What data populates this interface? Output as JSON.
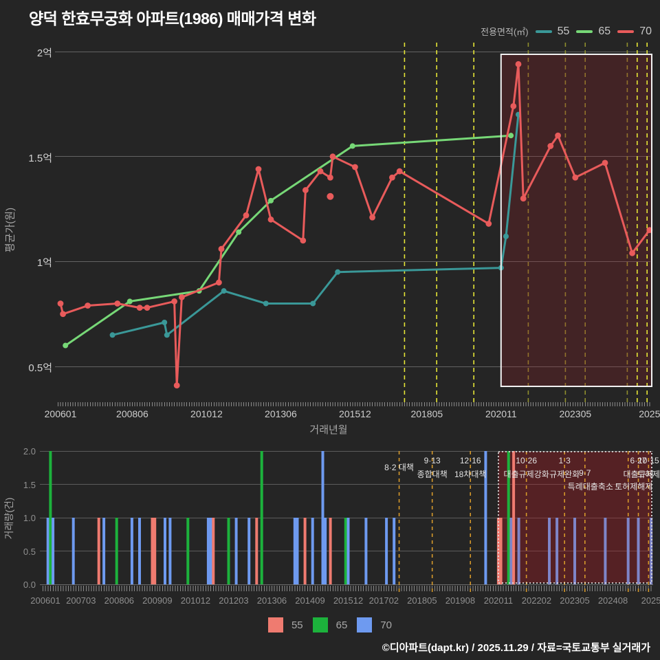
{
  "title": "양덕 한효무궁화 아파트(1986) 매매가격 변화",
  "top_legend": {
    "label": "전용면적(㎡)",
    "items": [
      {
        "name": "55",
        "color": "#3a9898"
      },
      {
        "name": "65",
        "color": "#77d877"
      },
      {
        "name": "70",
        "color": "#e85b5b"
      }
    ]
  },
  "bottom_legend": [
    {
      "name": "55",
      "color": "#ef7b70"
    },
    {
      "name": "65",
      "color": "#1cb23c"
    },
    {
      "name": "70",
      "color": "#6e9af0"
    }
  ],
  "footer": "©디아파트(dapt.kr) / 2025.11.29 / 자료=국토교통부 실거래가",
  "colors": {
    "background": "#252525",
    "gridline": "#636363",
    "policy_dash_bright": "#e6e636",
    "policy_dash_dim": "#8f8f2e",
    "policy_dash_orange": "#d6992b",
    "highlight_fill_price": "rgba(160,28,36,0.24)",
    "highlight_fill_volume": "rgba(165,30,38,0.38)",
    "highlight_border": "#f2f2f2",
    "bar70_muted_in_highlight": "#7e85c8"
  },
  "chart_data": [
    {
      "name": "price",
      "type": "line",
      "ylabel": "평균가(원)",
      "xlabel": "거래년월",
      "unit": "억원 (hundred million KRW)",
      "ylim": [
        0.3,
        2.05
      ],
      "grid": true,
      "legend_position": "top-right",
      "yticks": [
        [
          "2억",
          2
        ],
        [
          "1.5억",
          1.5
        ],
        [
          "1억",
          1
        ],
        [
          "0.5억",
          0.5
        ]
      ],
      "xticks": [
        [
          "200601",
          "2006-01"
        ],
        [
          "200806",
          "2008-06"
        ],
        [
          "201012",
          "2010-12"
        ],
        [
          "201306",
          "2013-06"
        ],
        [
          "201512",
          "2015-12"
        ],
        [
          "201805",
          "2018-05"
        ],
        [
          "202011",
          "2020-11"
        ],
        [
          "202305",
          "2023-05"
        ],
        [
          "2025",
          "2025-11"
        ]
      ],
      "series": [
        {
          "name": "55",
          "color": "#3a9898",
          "points": [
            [
              "2007-10",
              0.65
            ],
            [
              "2009-07",
              0.71
            ],
            [
              "2009-08",
              0.65
            ],
            [
              "2011-07",
              0.86
            ],
            [
              "2012-12",
              0.8
            ],
            [
              "2014-07",
              0.8
            ],
            [
              "2015-05",
              0.95
            ],
            [
              "2020-11",
              0.97
            ],
            [
              "2021-01",
              1.12
            ],
            [
              "2021-06",
              1.7
            ]
          ]
        },
        {
          "name": "65",
          "color": "#77d877",
          "points": [
            [
              "2006-03",
              0.6
            ],
            [
              "2008-05",
              0.81
            ],
            [
              "2010-09",
              0.86
            ],
            [
              "2012-01",
              1.14
            ],
            [
              "2013-02",
              1.29
            ],
            [
              "2015-11",
              1.55
            ],
            [
              "2021-03",
              1.6
            ]
          ]
        },
        {
          "name": "70",
          "color": "#e85b5b",
          "points": [
            [
              "2006-01",
              0.8
            ],
            [
              "2006-02",
              0.75
            ],
            [
              "2006-12",
              0.79
            ],
            [
              "2007-12",
              0.8
            ],
            [
              "2008-09",
              0.78
            ],
            [
              "2008-12",
              0.78
            ],
            [
              "2009-11",
              0.81
            ],
            [
              "2009-12",
              0.41
            ],
            [
              "2010-02",
              0.83
            ],
            [
              "2011-05",
              0.9
            ],
            [
              "2011-06",
              1.06
            ],
            [
              "2012-04",
              1.22
            ],
            [
              "2012-09",
              1.44
            ],
            [
              "2013-02",
              1.2
            ],
            [
              "2014-03",
              1.1
            ],
            [
              "2014-04",
              1.34
            ],
            [
              "2014-10",
              1.43
            ],
            [
              "2015-02",
              1.4
            ],
            [
              "2015-03",
              1.5
            ],
            [
              "2015-12",
              1.45
            ],
            [
              "2016-07",
              1.21
            ],
            [
              "2017-03",
              1.4
            ],
            [
              "2017-06",
              1.43
            ],
            [
              "2020-06",
              1.18
            ],
            [
              "2021-04",
              1.74
            ],
            [
              "2021-06",
              1.94
            ],
            [
              "2021-08",
              1.3
            ],
            [
              "2022-07",
              1.55
            ],
            [
              "2022-10",
              1.6
            ],
            [
              "2023-05",
              1.4
            ],
            [
              "2024-05",
              1.47
            ],
            [
              "2025-04",
              1.04
            ],
            [
              "2025-11",
              1.15
            ]
          ]
        }
      ],
      "outlier_point": {
        "series": "70",
        "date": "2015-02",
        "value": 1.31
      },
      "highlight_range": [
        "2020-11",
        "2025-12"
      ],
      "policy_dates": [
        {
          "date": "2017-08",
          "top_style": "bright"
        },
        {
          "date": "2018-09",
          "top_style": "bright"
        },
        {
          "date": "2019-12",
          "top_style": "bright"
        },
        {
          "date": "2021-10",
          "top_style": "dim"
        },
        {
          "date": "2023-01",
          "top_style": "dim"
        },
        {
          "date": "2023-09",
          "top_style": "dim"
        },
        {
          "date": "2025-02",
          "top_style": "dim"
        },
        {
          "date": "2025-06",
          "top_style": "bright"
        },
        {
          "date": "2025-10",
          "top_style": "bright"
        }
      ]
    },
    {
      "name": "volume",
      "type": "bar",
      "ylabel": "거래량(건)",
      "ylim": [
        0,
        2
      ],
      "grid": true,
      "yticks": [
        [
          "2.0",
          2
        ],
        [
          "1.5",
          1.5
        ],
        [
          "1.0",
          1
        ],
        [
          "0.5",
          0.5
        ],
        [
          "0.0",
          0
        ]
      ],
      "xticks": [
        [
          "200601",
          "2006-01"
        ],
        [
          "200703",
          "2007-03"
        ],
        [
          "200806",
          "2008-06"
        ],
        [
          "200909",
          "2009-09"
        ],
        [
          "201012",
          "2010-12"
        ],
        [
          "201203",
          "2012-03"
        ],
        [
          "201306",
          "2013-06"
        ],
        [
          "201409",
          "2014-09"
        ],
        [
          "201512",
          "2015-12"
        ],
        [
          "201702",
          "2017-02"
        ],
        [
          "201805",
          "2018-05"
        ],
        [
          "201908",
          "2019-08"
        ],
        [
          "202011",
          "2020-11"
        ],
        [
          "202202",
          "2022-02"
        ],
        [
          "202305",
          "2023-05"
        ],
        [
          "202408",
          "2024-08"
        ],
        [
          "2025",
          "2025-11"
        ]
      ],
      "series_colors": {
        "55": "#ef7b70",
        "65": "#1cb23c",
        "70": "#6e9af0"
      },
      "bars": [
        {
          "date": "2006-02",
          "series": "70",
          "count": 1
        },
        {
          "date": "2006-03",
          "series": "65",
          "count": 2
        },
        {
          "date": "2006-04",
          "series": "70",
          "count": 1
        },
        {
          "date": "2006-12",
          "series": "70",
          "count": 1
        },
        {
          "date": "2007-10",
          "series": "55",
          "count": 1
        },
        {
          "date": "2007-12",
          "series": "70",
          "count": 1
        },
        {
          "date": "2008-05",
          "series": "65",
          "count": 1
        },
        {
          "date": "2008-11",
          "series": "70",
          "count": 1
        },
        {
          "date": "2009-02",
          "series": "70",
          "count": 1
        },
        {
          "date": "2009-07",
          "series": "55",
          "count": 1
        },
        {
          "date": "2009-08",
          "series": "55",
          "count": 1
        },
        {
          "date": "2009-12",
          "series": "70",
          "count": 1
        },
        {
          "date": "2010-02",
          "series": "70",
          "count": 1
        },
        {
          "date": "2010-09",
          "series": "65",
          "count": 1
        },
        {
          "date": "2011-05",
          "series": "70",
          "count": 1
        },
        {
          "date": "2011-06",
          "series": "70",
          "count": 1
        },
        {
          "date": "2011-07",
          "series": "55",
          "count": 1
        },
        {
          "date": "2012-01",
          "series": "65",
          "count": 1
        },
        {
          "date": "2012-04",
          "series": "70",
          "count": 1
        },
        {
          "date": "2012-09",
          "series": "70",
          "count": 1
        },
        {
          "date": "2012-12",
          "series": "55",
          "count": 1
        },
        {
          "date": "2013-02",
          "series": "65",
          "count": 2
        },
        {
          "date": "2014-03",
          "series": "70",
          "count": 1
        },
        {
          "date": "2014-04",
          "series": "70",
          "count": 1
        },
        {
          "date": "2014-07",
          "series": "55",
          "count": 1
        },
        {
          "date": "2014-10",
          "series": "70",
          "count": 1
        },
        {
          "date": "2015-02",
          "series": "70",
          "count": 2
        },
        {
          "date": "2015-03",
          "series": "70",
          "count": 1
        },
        {
          "date": "2015-05",
          "series": "55",
          "count": 1
        },
        {
          "date": "2015-11",
          "series": "65",
          "count": 1
        },
        {
          "date": "2015-12",
          "series": "70",
          "count": 1
        },
        {
          "date": "2016-07",
          "series": "70",
          "count": 1
        },
        {
          "date": "2017-03",
          "series": "70",
          "count": 1
        },
        {
          "date": "2017-06",
          "series": "70",
          "count": 1
        },
        {
          "date": "2020-06",
          "series": "70",
          "count": 2
        },
        {
          "date": "2020-11",
          "series": "55",
          "count": 1
        },
        {
          "date": "2020-12",
          "series": "55",
          "count": 1
        },
        {
          "date": "2021-03",
          "series": "65",
          "count": 2
        },
        {
          "date": "2021-04",
          "series": "70",
          "count": 1
        },
        {
          "date": "2021-05",
          "series": "55",
          "count": 2
        },
        {
          "date": "2021-07",
          "series": "70",
          "count": 1
        },
        {
          "date": "2022-07",
          "series": "70",
          "count": 1
        },
        {
          "date": "2022-10",
          "series": "70",
          "count": 1
        },
        {
          "date": "2023-05",
          "series": "70",
          "count": 1
        },
        {
          "date": "2024-05",
          "series": "70",
          "count": 1
        },
        {
          "date": "2025-02",
          "series": "70",
          "count": 1
        },
        {
          "date": "2025-06",
          "series": "70",
          "count": 1
        },
        {
          "date": "2025-11",
          "series": "70",
          "count": 1
        }
      ],
      "highlight_range": [
        "2020-11",
        "2025-12"
      ],
      "policy_dates": [
        "2017-08",
        "2018-09",
        "2019-12",
        "2021-10",
        "2023-01",
        "2023-09",
        "2025-02",
        "2025-06",
        "2025-10"
      ],
      "annotations": [
        {
          "date": "2017-08",
          "row": 1,
          "dy": 8,
          "text": "8·2 대책"
        },
        {
          "date": "2018-09",
          "row": 1,
          "text": "9·13"
        },
        {
          "date": "2018-09",
          "row": 2,
          "text": "종합대책"
        },
        {
          "date": "2019-12",
          "row": 1,
          "text": "12·16"
        },
        {
          "date": "2019-12",
          "row": 2,
          "text": "18차대책"
        },
        {
          "date": "2021-10",
          "row": 1,
          "text": "10·26"
        },
        {
          "date": "2021-10",
          "row": 2,
          "text": "대출규제강화"
        },
        {
          "date": "2023-01",
          "row": 1,
          "text": "1·3"
        },
        {
          "date": "2023-01",
          "row": 2,
          "text": "규제완화"
        },
        {
          "date": "2023-09",
          "row": 2,
          "text": "9·7"
        },
        {
          "date": "2023-09",
          "row": 3,
          "dx": 8,
          "text": "특례대출축소"
        },
        {
          "date": "2025-02",
          "row": 3,
          "dx": 8,
          "text": "토허제해제"
        },
        {
          "date": "2025-06",
          "row": 1,
          "text": "6·27"
        },
        {
          "date": "2025-06",
          "row": 2,
          "text": "대출규제"
        },
        {
          "date": "2025-10",
          "row": 1,
          "text": "10·15"
        },
        {
          "date": "2025-10",
          "row": 2,
          "text": "토허제"
        }
      ]
    }
  ]
}
